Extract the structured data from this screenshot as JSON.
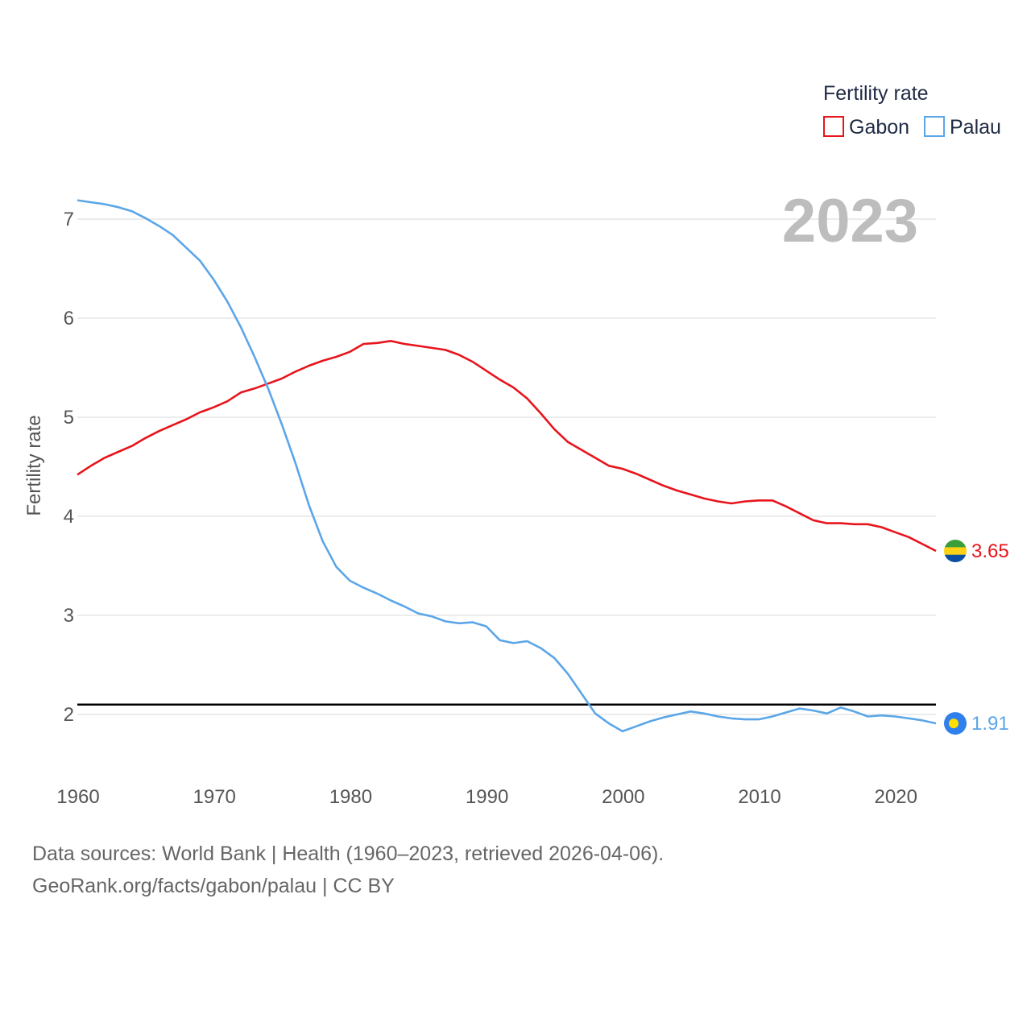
{
  "chart_data": {
    "type": "line",
    "title": "Fertility rate",
    "legend_title": "Fertility rate",
    "highlight_year": "2023",
    "xlabel": "",
    "ylabel": "Fertility rate",
    "xlim": [
      1960,
      2023
    ],
    "ylim": [
      1.5,
      7.2
    ],
    "x_ticks": [
      1960,
      1970,
      1980,
      1990,
      2000,
      2010,
      2020
    ],
    "y_ticks": [
      2,
      3,
      4,
      5,
      6,
      7
    ],
    "reference_line": 2.1,
    "x": [
      1960,
      1961,
      1962,
      1963,
      1964,
      1965,
      1966,
      1967,
      1968,
      1969,
      1970,
      1971,
      1972,
      1973,
      1974,
      1975,
      1976,
      1977,
      1978,
      1979,
      1980,
      1981,
      1982,
      1983,
      1984,
      1985,
      1986,
      1987,
      1988,
      1989,
      1990,
      1991,
      1992,
      1993,
      1994,
      1995,
      1996,
      1997,
      1998,
      1999,
      2000,
      2001,
      2002,
      2003,
      2004,
      2005,
      2006,
      2007,
      2008,
      2009,
      2010,
      2011,
      2012,
      2013,
      2014,
      2015,
      2016,
      2017,
      2018,
      2019,
      2020,
      2021,
      2022,
      2023
    ],
    "series": [
      {
        "name": "Gabon",
        "color": "#e8141c",
        "end_label": "3.65",
        "values": [
          4.42,
          4.51,
          4.59,
          4.65,
          4.71,
          4.79,
          4.86,
          4.92,
          4.98,
          5.05,
          5.1,
          5.16,
          5.25,
          5.29,
          5.34,
          5.39,
          5.46,
          5.52,
          5.57,
          5.61,
          5.66,
          5.74,
          5.75,
          5.77,
          5.74,
          5.72,
          5.7,
          5.68,
          5.63,
          5.56,
          5.47,
          5.38,
          5.3,
          5.19,
          5.04,
          4.88,
          4.75,
          4.67,
          4.59,
          4.51,
          4.48,
          4.43,
          4.37,
          4.31,
          4.26,
          4.22,
          4.18,
          4.15,
          4.13,
          4.15,
          4.16,
          4.16,
          4.1,
          4.03,
          3.96,
          3.93,
          3.93,
          3.92,
          3.92,
          3.89,
          3.84,
          3.79,
          3.72,
          3.65
        ]
      },
      {
        "name": "Palau",
        "color": "#5ba6e8",
        "end_label": "1.91",
        "values": [
          7.19,
          7.17,
          7.15,
          7.12,
          7.08,
          7.01,
          6.93,
          6.84,
          6.71,
          6.58,
          6.39,
          6.17,
          5.91,
          5.61,
          5.29,
          4.93,
          4.54,
          4.11,
          3.75,
          3.49,
          3.35,
          3.28,
          3.22,
          3.15,
          3.09,
          3.02,
          2.99,
          2.94,
          2.92,
          2.93,
          2.89,
          2.75,
          2.72,
          2.74,
          2.67,
          2.57,
          2.41,
          2.21,
          2.01,
          1.91,
          1.83,
          1.88,
          1.93,
          1.97,
          2.0,
          2.03,
          2.01,
          1.98,
          1.96,
          1.95,
          1.95,
          1.98,
          2.02,
          2.06,
          2.04,
          2.01,
          2.07,
          2.03,
          1.98,
          1.99,
          1.98,
          1.96,
          1.94,
          1.91
        ]
      }
    ],
    "flags": {
      "Gabon": [
        "#3a9e3a",
        "#fcd116",
        "#0a4fa3"
      ],
      "Palau": [
        "#2f80ed",
        "#ffde00"
      ]
    }
  },
  "footer": {
    "line1": "Data sources: World Bank | Health (1960–2023, retrieved 2026-04-06).",
    "line2": "GeoRank.org/facts/gabon/palau | CC BY"
  }
}
